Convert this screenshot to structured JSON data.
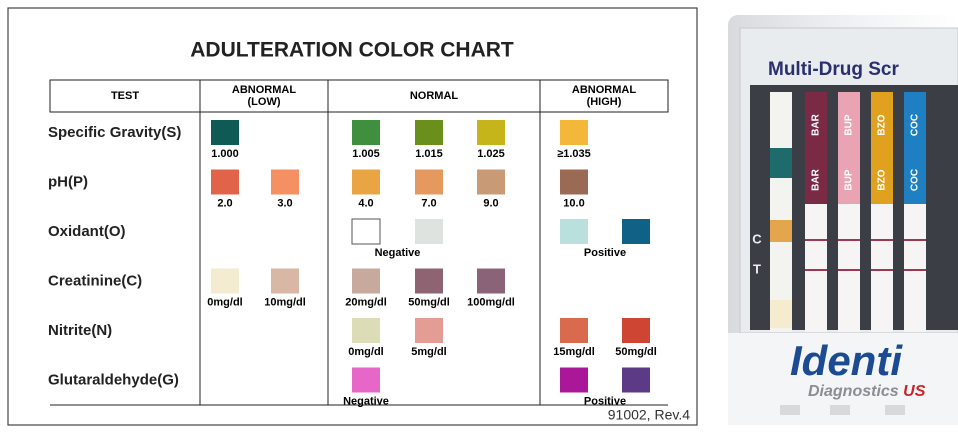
{
  "chart": {
    "title": "ADULTERATION COLOR CHART",
    "headers": [
      [
        "TEST"
      ],
      [
        "ABNORMAL",
        "(LOW)"
      ],
      [
        "NORMAL"
      ],
      [
        "ABNORMAL",
        "(HIGH)"
      ]
    ],
    "rows": [
      {
        "name": "Specific Gravity(S)",
        "low": {
          "swatches": [
            {
              "color": "#0f5a55",
              "label": "1.000"
            }
          ]
        },
        "normal": {
          "swatches": [
            {
              "color": "#3f8f3e",
              "label": "1.005"
            },
            {
              "color": "#6a8f1a",
              "label": "1.015"
            },
            {
              "color": "#c5b51a",
              "label": "1.025"
            }
          ]
        },
        "high": {
          "swatches": [
            {
              "color": "#f3b83a",
              "label": "≥1.035"
            }
          ]
        }
      },
      {
        "name": "pH(P)",
        "low": {
          "swatches": [
            {
              "color": "#e0634a",
              "label": "2.0"
            },
            {
              "color": "#f58f64",
              "label": "3.0"
            }
          ]
        },
        "normal": {
          "swatches": [
            {
              "color": "#e9a444",
              "label": "4.0"
            },
            {
              "color": "#e5995f",
              "label": "7.0"
            },
            {
              "color": "#c99a76",
              "label": "9.0"
            }
          ]
        },
        "high": {
          "swatches": [
            {
              "color": "#9a6a55",
              "label": "10.0"
            }
          ]
        }
      },
      {
        "name": "Oxidant(O)",
        "normal": {
          "swatches": [
            {
              "color": "#ffffff"
            },
            {
              "color": "#dfe3df"
            }
          ],
          "caption": "Negative"
        },
        "high": {
          "swatches": [
            {
              "color": "#b9e0dc"
            },
            {
              "color": "#0f6285"
            }
          ],
          "caption": "Positive"
        }
      },
      {
        "name": "Creatinine(C)",
        "low": {
          "swatches": [
            {
              "color": "#f3ecd1",
              "label": "0mg/dl"
            },
            {
              "color": "#d8b7a4",
              "label": "10mg/dl"
            }
          ]
        },
        "normal": {
          "swatches": [
            {
              "color": "#c7aa9d",
              "label": "20mg/dl"
            },
            {
              "color": "#8f6472",
              "label": "50mg/dl"
            },
            {
              "color": "#8b6378",
              "label": "100mg/dl"
            }
          ]
        }
      },
      {
        "name": "Nitrite(N)",
        "normal": {
          "swatches": [
            {
              "color": "#dcdcb6",
              "label": "0mg/dl"
            },
            {
              "color": "#e39d94",
              "label": "5mg/dl"
            }
          ]
        },
        "high": {
          "swatches": [
            {
              "color": "#d96a4d",
              "label": "15mg/dl"
            },
            {
              "color": "#cf4533",
              "label": "50mg/dl"
            }
          ]
        }
      },
      {
        "name": "Glutaraldehyde(G)",
        "normal": {
          "swatches": [
            {
              "color": "#e767c8"
            }
          ],
          "caption": "Negative"
        },
        "high": {
          "swatches": [
            {
              "color": "#aa1899"
            },
            {
              "color": "#5c3a86"
            }
          ],
          "caption": "Positive"
        }
      }
    ],
    "footer": "91002, Rev.4"
  },
  "product": {
    "header": "Multi-Drug Scr",
    "strips": [
      "BAR",
      "BUP",
      "BZO",
      "COC"
    ],
    "control": "C",
    "test": "T",
    "logo": "Identi",
    "sub": "Diagnostics",
    "sub_country": "US"
  }
}
